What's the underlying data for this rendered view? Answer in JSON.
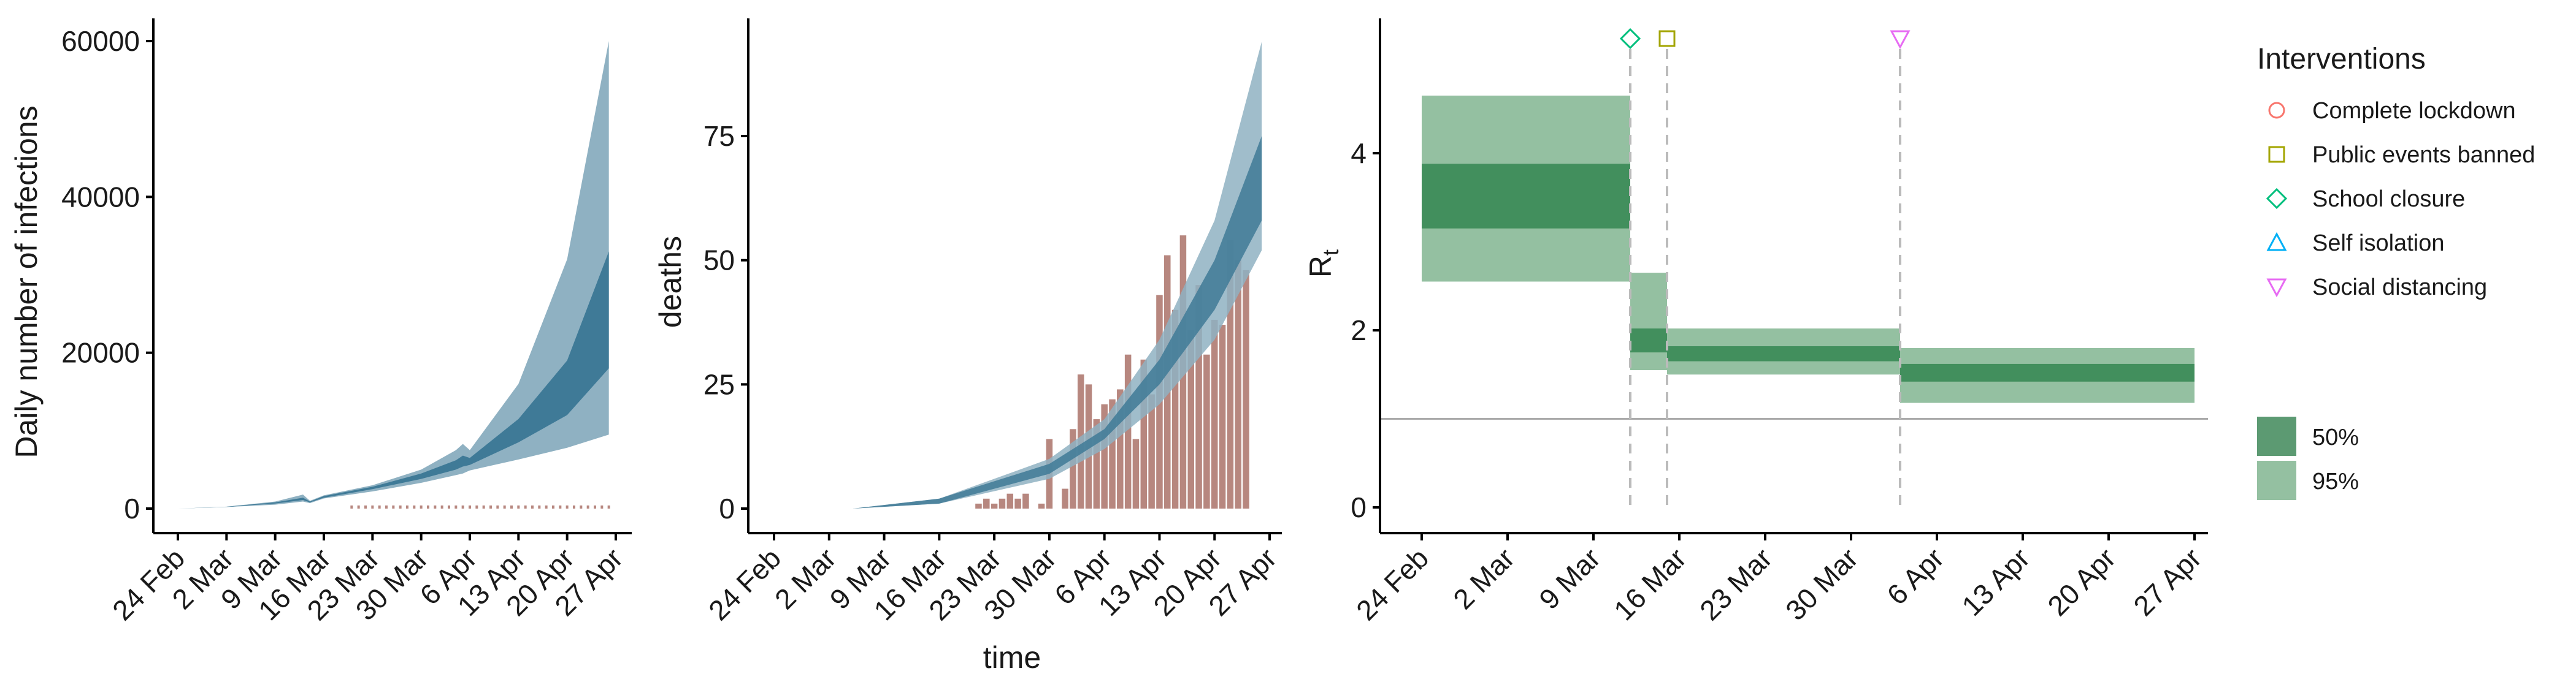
{
  "colors": {
    "band95_infections": "#8fb1c2",
    "band50_infections": "#3f7a97",
    "bars": "#b7877f",
    "band95_rt": "#94c0a1",
    "band50_rt": "#428f5d",
    "axis": "#000000",
    "refline": "#aaaaaa",
    "dashline": "#bbbbbb"
  },
  "date_ticks": [
    "24 Feb",
    "2 Mar",
    "9 Mar",
    "16 Mar",
    "23 Mar",
    "30 Mar",
    "6 Apr",
    "13 Apr",
    "20 Apr",
    "27 Apr"
  ],
  "chart_data": [
    {
      "type": "area",
      "panel": "infections",
      "xlabel": "",
      "ylabel": "Daily number of infections",
      "x_start": "2020-02-24",
      "x_end": "2020-04-27",
      "ylim": [
        0,
        63000
      ],
      "yticks": [
        0,
        20000,
        40000,
        60000
      ],
      "x": [
        "2020-02-24",
        "2020-03-02",
        "2020-03-09",
        "2020-03-13",
        "2020-03-14",
        "2020-03-16",
        "2020-03-23",
        "2020-03-30",
        "2020-04-04",
        "2020-04-05",
        "2020-04-06",
        "2020-04-13",
        "2020-04-20",
        "2020-04-26"
      ],
      "series": [
        {
          "band": "95",
          "lower": [
            0,
            200,
            500,
            900,
            700,
            1300,
            2200,
            3300,
            4300,
            4500,
            4900,
            6300,
            7800,
            9500
          ],
          "upper": [
            0,
            250,
            900,
            1800,
            1000,
            1700,
            3000,
            5000,
            7500,
            8300,
            7500,
            16000,
            32000,
            60000
          ]
        },
        {
          "band": "50",
          "lower": [
            0,
            220,
            650,
            1100,
            800,
            1400,
            2500,
            3800,
            5000,
            5400,
            5600,
            8500,
            12000,
            18000
          ],
          "upper": [
            0,
            240,
            800,
            1400,
            900,
            1600,
            2800,
            4500,
            6200,
            6800,
            6500,
            11500,
            19000,
            33000
          ]
        }
      ],
      "observed_bars_note": "",
      "observed": {
        "x_start": "2020-03-20",
        "x_end": "2020-04-26",
        "level": 400
      }
    },
    {
      "type": "bar",
      "panel": "deaths",
      "xlabel": "time",
      "ylabel": "deaths",
      "x_start": "2020-02-24",
      "x_end": "2020-04-27",
      "ylim": [
        0,
        100
      ],
      "yticks": [
        0,
        25,
        50,
        75
      ],
      "bars_start": "2020-03-21",
      "values": [
        1,
        2,
        1,
        2,
        3,
        2,
        3,
        0,
        1,
        14,
        0,
        4,
        16,
        27,
        25,
        18,
        21,
        22,
        24,
        31,
        14,
        30,
        23,
        43,
        51,
        40,
        55,
        36,
        45,
        31,
        38,
        37,
        54,
        50,
        48
      ],
      "band_x": [
        "2020-03-05",
        "2020-03-16",
        "2020-03-30",
        "2020-04-06",
        "2020-04-13",
        "2020-04-20",
        "2020-04-26"
      ],
      "series": [
        {
          "band": "95",
          "lower": [
            0,
            1,
            6,
            12,
            21,
            34,
            52
          ],
          "upper": [
            0,
            2,
            10,
            18,
            34,
            58,
            94
          ]
        },
        {
          "band": "50",
          "lower": [
            0,
            1,
            7,
            14,
            25,
            40,
            58
          ],
          "upper": [
            0,
            2,
            9,
            16,
            30,
            50,
            75
          ]
        }
      ]
    },
    {
      "type": "area",
      "panel": "rt",
      "xlabel": "",
      "ylabel": "Rt",
      "ylabel_main": "R",
      "ylabel_sub": "t",
      "x_start": "2020-02-24",
      "x_end": "2020-04-27",
      "ylim": [
        0,
        5.4
      ],
      "yticks": [
        0,
        2,
        4
      ],
      "reference_line": 1,
      "segments": [
        {
          "from": "2020-02-24",
          "to": "2020-03-12",
          "lo95": 2.55,
          "hi95": 4.65,
          "lo50": 3.15,
          "hi50": 3.88
        },
        {
          "from": "2020-03-12",
          "to": "2020-03-15",
          "lo95": 1.55,
          "hi95": 2.65,
          "lo50": 1.75,
          "hi50": 2.02
        },
        {
          "from": "2020-03-15",
          "to": "2020-04-03",
          "lo95": 1.5,
          "hi95": 2.02,
          "lo50": 1.65,
          "hi50": 1.82
        },
        {
          "from": "2020-04-03",
          "to": "2020-04-27",
          "lo95": 1.18,
          "hi95": 1.8,
          "lo50": 1.42,
          "hi50": 1.62
        }
      ],
      "interventions": [
        {
          "date": "2020-03-12",
          "marker": "diamond",
          "label": "School closure"
        },
        {
          "date": "2020-03-15",
          "marker": "square",
          "label": "Public events banned"
        },
        {
          "date": "2020-04-03",
          "marker": "triangle-down",
          "label": "Social distancing"
        }
      ]
    }
  ],
  "legend": {
    "title": "Interventions",
    "items": [
      {
        "label": "Complete lockdown",
        "marker": "circle",
        "color": "#f8766d"
      },
      {
        "label": "Public events banned",
        "marker": "square",
        "color": "#a3a500"
      },
      {
        "label": "School closure",
        "marker": "diamond",
        "color": "#00bf7d"
      },
      {
        "label": "Self isolation",
        "marker": "triangle-up",
        "color": "#00b0f6"
      },
      {
        "label": "Social distancing",
        "marker": "triangle-down",
        "color": "#e76bf3"
      }
    ],
    "bands": [
      {
        "label": "50%",
        "color": "#5c9a72"
      },
      {
        "label": "95%",
        "color": "#94c0a1"
      }
    ]
  }
}
